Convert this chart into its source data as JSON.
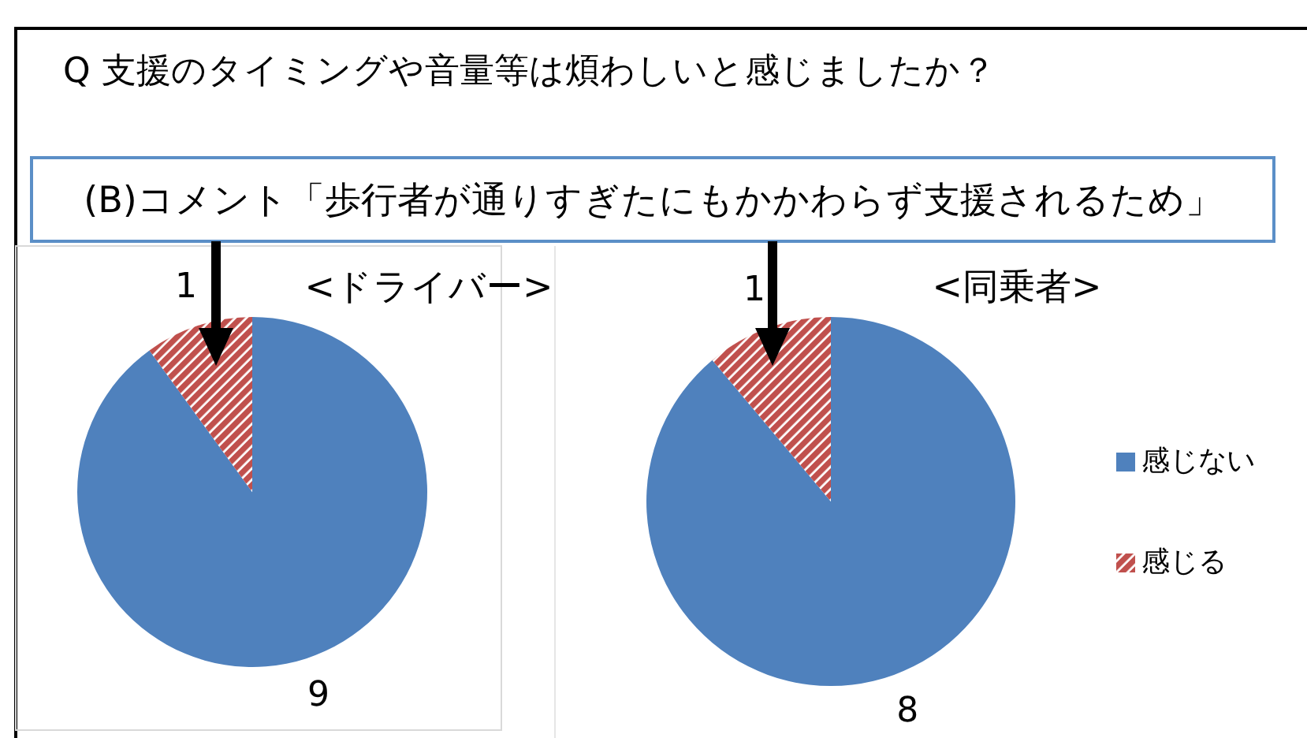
{
  "chart_data": [
    {
      "type": "pie",
      "title": "Q  支援のタイミングや音量等は煩わしいと感じましたか？",
      "subtitle": "<ドライバー>",
      "annotations": [
        "(B)コメント「歩行者が通りすぎたにもかかわらず支援されるため」"
      ],
      "categories": [
        null,
        null
      ],
      "values": [
        9,
        1
      ],
      "colors": [
        "#4f81bd",
        "#c0504d"
      ],
      "data_labels": true,
      "legend": false
    },
    {
      "type": "pie",
      "title": "<同乗者>",
      "categories": [
        "感じない",
        "感じる"
      ],
      "values": [
        8,
        1
      ],
      "colors": [
        "#4f81bd",
        "#c0504d"
      ],
      "data_labels": true,
      "legend": "right"
    }
  ]
}
